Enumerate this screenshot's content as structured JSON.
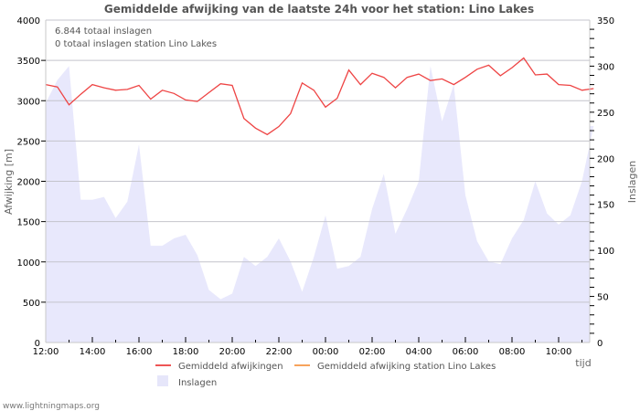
{
  "chart_data": {
    "type": "line",
    "title": "Gemiddelde afwijking van de laatste 24h voor het station: Lino Lakes",
    "info_lines": [
      "6.844 totaal inslagen",
      "0 totaal inslagen station Lino Lakes"
    ],
    "xlabel": "tijd",
    "ylabel": "Afwijking  [m]",
    "ylabel_right": "Inslagen",
    "ylim": [
      0,
      4000
    ],
    "ylim_right": [
      0,
      350
    ],
    "yticks": [
      0,
      500,
      1000,
      1500,
      2000,
      2500,
      3000,
      3500,
      4000
    ],
    "yticks_right": [
      0,
      50,
      100,
      150,
      200,
      250,
      300,
      350
    ],
    "xticks": [
      "12:00",
      "14:00",
      "16:00",
      "18:00",
      "20:00",
      "22:00",
      "00:00",
      "02:00",
      "04:00",
      "06:00",
      "08:00",
      "10:00"
    ],
    "grid": true,
    "legend_position": "bottom",
    "x": [
      "12:00",
      "12:30",
      "13:00",
      "13:30",
      "14:00",
      "14:30",
      "15:00",
      "15:30",
      "16:00",
      "16:30",
      "17:00",
      "17:30",
      "18:00",
      "18:30",
      "19:00",
      "19:30",
      "20:00",
      "20:30",
      "21:00",
      "21:30",
      "22:00",
      "22:30",
      "23:00",
      "23:30",
      "00:00",
      "00:30",
      "01:00",
      "01:30",
      "02:00",
      "02:30",
      "03:00",
      "03:30",
      "04:00",
      "04:30",
      "05:00",
      "05:30",
      "06:00",
      "06:30",
      "07:00",
      "07:30",
      "08:00",
      "08:30",
      "09:00",
      "09:30",
      "10:00",
      "10:30",
      "11:00",
      "11:30"
    ],
    "series": [
      {
        "name": "Gemiddeld afwijkingen",
        "color": "#ee4444",
        "axis": "left",
        "values": [
          3200,
          3170,
          2950,
          3080,
          3200,
          3160,
          3130,
          3140,
          3190,
          3020,
          3130,
          3090,
          3010,
          2990,
          3100,
          3210,
          3190,
          2780,
          2660,
          2580,
          2680,
          2840,
          3220,
          3130,
          2920,
          3030,
          3380,
          3200,
          3340,
          3290,
          3160,
          3290,
          3330,
          3250,
          3270,
          3200,
          3290,
          3390,
          3440,
          3310,
          3410,
          3530,
          3320,
          3330,
          3200,
          3190,
          3130,
          3150
        ]
      },
      {
        "name": "Gemiddeld afwijking station Lino Lakes",
        "color": "#f7a35c",
        "axis": "left",
        "values": []
      },
      {
        "name": "Inslagen",
        "color": "#e8e8fc",
        "axis": "right",
        "type": "area",
        "values": [
          260,
          285,
          300,
          155,
          155,
          158,
          135,
          153,
          215,
          105,
          105,
          113,
          117,
          95,
          57,
          47,
          53,
          93,
          83,
          93,
          113,
          88,
          55,
          93,
          138,
          80,
          83,
          93,
          145,
          183,
          118,
          145,
          175,
          300,
          240,
          280,
          160,
          110,
          88,
          85,
          113,
          133,
          175,
          140,
          128,
          138,
          175,
          235
        ]
      }
    ]
  },
  "legend": {
    "items": [
      {
        "label": "Gemiddeld afwijkingen",
        "color": "#ee5555"
      },
      {
        "label": "Gemiddeld afwijking station Lino Lakes",
        "color": "#f7a35c"
      },
      {
        "label": "Inslagen",
        "color": "#e6e6fa"
      }
    ]
  },
  "footer": {
    "credit": "www.lightningmaps.org"
  }
}
